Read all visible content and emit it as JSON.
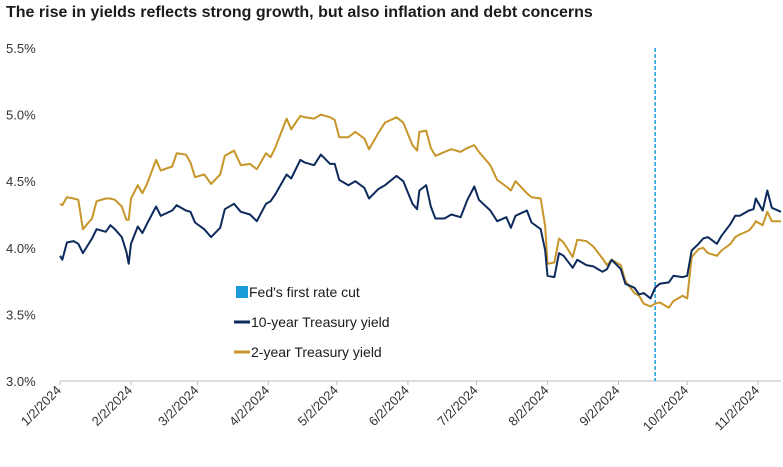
{
  "chart_data": {
    "type": "line",
    "title": "The rise in yields reflects strong growth, but also inflation and debt concerns",
    "ylim": [
      3.0,
      5.5
    ],
    "y_ticks": [
      "5.5%",
      "5.0%",
      "4.5%",
      "4.0%",
      "3.5%",
      "3.0%"
    ],
    "y_tick_values": [
      5.5,
      5.0,
      4.5,
      4.0,
      3.5,
      3.0
    ],
    "x_ticks": [
      "1/2/2024",
      "2/2/2024",
      "3/2/2024",
      "4/2/2024",
      "5/2/2024",
      "6/2/2024",
      "7/2/2024",
      "8/2/2024",
      "9/2/2024",
      "10/2/2024",
      "11/2/2024"
    ],
    "x_range": [
      "2024-01-02",
      "2024-11-12"
    ],
    "grid": false,
    "legend_position": "center-left",
    "rate_cut": {
      "date": "2024-09-18",
      "label": "Fed's first rate cut",
      "color": "#1a9bd7"
    },
    "series": [
      {
        "name": "10-year Treasury yield",
        "color": "#0d2a5c",
        "points": [
          [
            "2024-01-02",
            3.94
          ],
          [
            "2024-01-03",
            3.91
          ],
          [
            "2024-01-05",
            4.04
          ],
          [
            "2024-01-08",
            4.05
          ],
          [
            "2024-01-10",
            4.03
          ],
          [
            "2024-01-12",
            3.96
          ],
          [
            "2024-01-16",
            4.07
          ],
          [
            "2024-01-18",
            4.14
          ],
          [
            "2024-01-22",
            4.12
          ],
          [
            "2024-01-24",
            4.17
          ],
          [
            "2024-01-26",
            4.14
          ],
          [
            "2024-01-29",
            4.08
          ],
          [
            "2024-01-31",
            3.97
          ],
          [
            "2024-02-01",
            3.88
          ],
          [
            "2024-02-02",
            4.03
          ],
          [
            "2024-02-05",
            4.16
          ],
          [
            "2024-02-07",
            4.11
          ],
          [
            "2024-02-09",
            4.18
          ],
          [
            "2024-02-13",
            4.31
          ],
          [
            "2024-02-15",
            4.24
          ],
          [
            "2024-02-20",
            4.28
          ],
          [
            "2024-02-22",
            4.32
          ],
          [
            "2024-02-26",
            4.28
          ],
          [
            "2024-02-28",
            4.27
          ],
          [
            "2024-03-01",
            4.19
          ],
          [
            "2024-03-05",
            4.14
          ],
          [
            "2024-03-08",
            4.08
          ],
          [
            "2024-03-12",
            4.15
          ],
          [
            "2024-03-14",
            4.29
          ],
          [
            "2024-03-18",
            4.33
          ],
          [
            "2024-03-21",
            4.27
          ],
          [
            "2024-03-25",
            4.25
          ],
          [
            "2024-03-28",
            4.2
          ],
          [
            "2024-04-01",
            4.33
          ],
          [
            "2024-04-03",
            4.35
          ],
          [
            "2024-04-05",
            4.4
          ],
          [
            "2024-04-10",
            4.55
          ],
          [
            "2024-04-12",
            4.52
          ],
          [
            "2024-04-16",
            4.66
          ],
          [
            "2024-04-18",
            4.64
          ],
          [
            "2024-04-22",
            4.62
          ],
          [
            "2024-04-25",
            4.7
          ],
          [
            "2024-04-29",
            4.63
          ],
          [
            "2024-05-01",
            4.63
          ],
          [
            "2024-05-03",
            4.51
          ],
          [
            "2024-05-07",
            4.47
          ],
          [
            "2024-05-10",
            4.5
          ],
          [
            "2024-05-14",
            4.45
          ],
          [
            "2024-05-16",
            4.37
          ],
          [
            "2024-05-20",
            4.44
          ],
          [
            "2024-05-23",
            4.47
          ],
          [
            "2024-05-28",
            4.54
          ],
          [
            "2024-05-31",
            4.5
          ],
          [
            "2024-06-04",
            4.33
          ],
          [
            "2024-06-06",
            4.29
          ],
          [
            "2024-06-07",
            4.43
          ],
          [
            "2024-06-10",
            4.47
          ],
          [
            "2024-06-12",
            4.31
          ],
          [
            "2024-06-14",
            4.22
          ],
          [
            "2024-06-18",
            4.22
          ],
          [
            "2024-06-21",
            4.25
          ],
          [
            "2024-06-25",
            4.23
          ],
          [
            "2024-06-28",
            4.36
          ],
          [
            "2024-07-01",
            4.46
          ],
          [
            "2024-07-03",
            4.36
          ],
          [
            "2024-07-08",
            4.28
          ],
          [
            "2024-07-11",
            4.2
          ],
          [
            "2024-07-15",
            4.23
          ],
          [
            "2024-07-17",
            4.15
          ],
          [
            "2024-07-19",
            4.24
          ],
          [
            "2024-07-24",
            4.28
          ],
          [
            "2024-07-26",
            4.19
          ],
          [
            "2024-07-30",
            4.14
          ],
          [
            "2024-08-01",
            3.98
          ],
          [
            "2024-08-02",
            3.79
          ],
          [
            "2024-08-05",
            3.78
          ],
          [
            "2024-08-07",
            3.96
          ],
          [
            "2024-08-09",
            3.94
          ],
          [
            "2024-08-13",
            3.85
          ],
          [
            "2024-08-15",
            3.91
          ],
          [
            "2024-08-19",
            3.87
          ],
          [
            "2024-08-22",
            3.86
          ],
          [
            "2024-08-26",
            3.82
          ],
          [
            "2024-08-28",
            3.84
          ],
          [
            "2024-08-30",
            3.91
          ],
          [
            "2024-09-03",
            3.84
          ],
          [
            "2024-09-05",
            3.73
          ],
          [
            "2024-09-09",
            3.7
          ],
          [
            "2024-09-11",
            3.65
          ],
          [
            "2024-09-13",
            3.66
          ],
          [
            "2024-09-16",
            3.62
          ],
          [
            "2024-09-18",
            3.7
          ],
          [
            "2024-09-20",
            3.73
          ],
          [
            "2024-09-24",
            3.74
          ],
          [
            "2024-09-26",
            3.79
          ],
          [
            "2024-09-30",
            3.78
          ],
          [
            "2024-10-02",
            3.79
          ],
          [
            "2024-10-04",
            3.98
          ],
          [
            "2024-10-07",
            4.03
          ],
          [
            "2024-10-09",
            4.07
          ],
          [
            "2024-10-11",
            4.08
          ],
          [
            "2024-10-15",
            4.03
          ],
          [
            "2024-10-17",
            4.09
          ],
          [
            "2024-10-21",
            4.18
          ],
          [
            "2024-10-23",
            4.24
          ],
          [
            "2024-10-25",
            4.24
          ],
          [
            "2024-10-29",
            4.28
          ],
          [
            "2024-10-31",
            4.29
          ],
          [
            "2024-11-01",
            4.37
          ],
          [
            "2024-11-04",
            4.28
          ],
          [
            "2024-11-06",
            4.43
          ],
          [
            "2024-11-08",
            4.3
          ],
          [
            "2024-11-12",
            4.27
          ]
        ]
      },
      {
        "name": "2-year Treasury yield",
        "color": "#c7962a",
        "points": [
          [
            "2024-01-02",
            4.33
          ],
          [
            "2024-01-03",
            4.32
          ],
          [
            "2024-01-05",
            4.38
          ],
          [
            "2024-01-08",
            4.37
          ],
          [
            "2024-01-10",
            4.36
          ],
          [
            "2024-01-12",
            4.14
          ],
          [
            "2024-01-16",
            4.22
          ],
          [
            "2024-01-18",
            4.35
          ],
          [
            "2024-01-22",
            4.37
          ],
          [
            "2024-01-24",
            4.37
          ],
          [
            "2024-01-26",
            4.36
          ],
          [
            "2024-01-29",
            4.31
          ],
          [
            "2024-01-31",
            4.21
          ],
          [
            "2024-02-01",
            4.21
          ],
          [
            "2024-02-02",
            4.37
          ],
          [
            "2024-02-05",
            4.47
          ],
          [
            "2024-02-07",
            4.41
          ],
          [
            "2024-02-09",
            4.48
          ],
          [
            "2024-02-13",
            4.66
          ],
          [
            "2024-02-15",
            4.58
          ],
          [
            "2024-02-20",
            4.61
          ],
          [
            "2024-02-22",
            4.71
          ],
          [
            "2024-02-26",
            4.7
          ],
          [
            "2024-02-28",
            4.64
          ],
          [
            "2024-03-01",
            4.53
          ],
          [
            "2024-03-05",
            4.55
          ],
          [
            "2024-03-08",
            4.48
          ],
          [
            "2024-03-12",
            4.55
          ],
          [
            "2024-03-14",
            4.69
          ],
          [
            "2024-03-18",
            4.73
          ],
          [
            "2024-03-21",
            4.62
          ],
          [
            "2024-03-25",
            4.63
          ],
          [
            "2024-03-28",
            4.59
          ],
          [
            "2024-04-01",
            4.71
          ],
          [
            "2024-04-03",
            4.68
          ],
          [
            "2024-04-05",
            4.75
          ],
          [
            "2024-04-10",
            4.97
          ],
          [
            "2024-04-12",
            4.89
          ],
          [
            "2024-04-16",
            4.99
          ],
          [
            "2024-04-18",
            4.98
          ],
          [
            "2024-04-22",
            4.97
          ],
          [
            "2024-04-25",
            5.0
          ],
          [
            "2024-04-29",
            4.98
          ],
          [
            "2024-05-01",
            4.96
          ],
          [
            "2024-05-03",
            4.83
          ],
          [
            "2024-05-07",
            4.83
          ],
          [
            "2024-05-10",
            4.87
          ],
          [
            "2024-05-14",
            4.82
          ],
          [
            "2024-05-16",
            4.74
          ],
          [
            "2024-05-20",
            4.86
          ],
          [
            "2024-05-23",
            4.94
          ],
          [
            "2024-05-28",
            4.98
          ],
          [
            "2024-05-31",
            4.94
          ],
          [
            "2024-06-04",
            4.77
          ],
          [
            "2024-06-06",
            4.73
          ],
          [
            "2024-06-07",
            4.87
          ],
          [
            "2024-06-10",
            4.88
          ],
          [
            "2024-06-12",
            4.75
          ],
          [
            "2024-06-14",
            4.69
          ],
          [
            "2024-06-18",
            4.72
          ],
          [
            "2024-06-21",
            4.74
          ],
          [
            "2024-06-25",
            4.72
          ],
          [
            "2024-06-28",
            4.75
          ],
          [
            "2024-07-01",
            4.77
          ],
          [
            "2024-07-03",
            4.72
          ],
          [
            "2024-07-08",
            4.62
          ],
          [
            "2024-07-11",
            4.51
          ],
          [
            "2024-07-15",
            4.46
          ],
          [
            "2024-07-17",
            4.43
          ],
          [
            "2024-07-19",
            4.5
          ],
          [
            "2024-07-24",
            4.41
          ],
          [
            "2024-07-26",
            4.38
          ],
          [
            "2024-07-30",
            4.37
          ],
          [
            "2024-08-01",
            4.16
          ],
          [
            "2024-08-02",
            3.88
          ],
          [
            "2024-08-05",
            3.89
          ],
          [
            "2024-08-07",
            4.07
          ],
          [
            "2024-08-09",
            4.04
          ],
          [
            "2024-08-13",
            3.93
          ],
          [
            "2024-08-15",
            4.06
          ],
          [
            "2024-08-19",
            4.05
          ],
          [
            "2024-08-22",
            4.01
          ],
          [
            "2024-08-26",
            3.92
          ],
          [
            "2024-08-28",
            3.87
          ],
          [
            "2024-08-30",
            3.91
          ],
          [
            "2024-09-03",
            3.87
          ],
          [
            "2024-09-05",
            3.75
          ],
          [
            "2024-09-09",
            3.66
          ],
          [
            "2024-09-11",
            3.64
          ],
          [
            "2024-09-13",
            3.58
          ],
          [
            "2024-09-16",
            3.56
          ],
          [
            "2024-09-18",
            3.58
          ],
          [
            "2024-09-20",
            3.59
          ],
          [
            "2024-09-24",
            3.55
          ],
          [
            "2024-09-26",
            3.6
          ],
          [
            "2024-09-30",
            3.64
          ],
          [
            "2024-10-02",
            3.62
          ],
          [
            "2024-10-04",
            3.93
          ],
          [
            "2024-10-07",
            3.99
          ],
          [
            "2024-10-09",
            4.0
          ],
          [
            "2024-10-11",
            3.96
          ],
          [
            "2024-10-15",
            3.94
          ],
          [
            "2024-10-17",
            3.98
          ],
          [
            "2024-10-21",
            4.03
          ],
          [
            "2024-10-23",
            4.08
          ],
          [
            "2024-10-25",
            4.1
          ],
          [
            "2024-10-29",
            4.13
          ],
          [
            "2024-10-31",
            4.17
          ],
          [
            "2024-11-01",
            4.2
          ],
          [
            "2024-11-04",
            4.17
          ],
          [
            "2024-11-06",
            4.27
          ],
          [
            "2024-11-08",
            4.2
          ],
          [
            "2024-11-12",
            4.2
          ]
        ]
      }
    ]
  }
}
